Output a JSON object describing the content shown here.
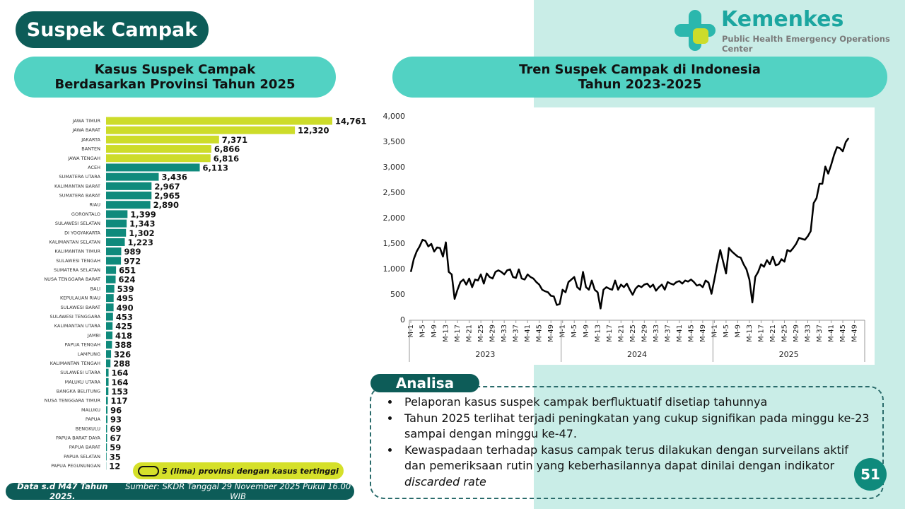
{
  "header": {
    "title": "Suspek Campak",
    "logo_name": "Kemenkes",
    "logo_subtitle": "Public Health Emergency Operations Center"
  },
  "chart_data": [
    {
      "type": "hbar",
      "title": [
        "Kasus Suspek Campak",
        "Berdasarkan Provinsi Tahun 2025"
      ],
      "categories": [
        "JAWA TIMUR",
        "JAWA BARAT",
        "JAKARTA",
        "BANTEN",
        "JAWA TENGAH",
        "ACEH",
        "SUMATERA UTARA",
        "KALIMANTAN BARAT",
        "SUMATERA BARAT",
        "RIAU",
        "GORONTALO",
        "SULAWESI SELATAN",
        "DI YOGYAKARTA",
        "KALIMANTAN SELATAN",
        "KALIMANTAN TIMUR",
        "SULAWESI TENGAH",
        "SUMATERA SELATAN",
        "NUSA TENGGARA BARAT",
        "BALI",
        "KEPULAUAN RIAU",
        "SULAWESI BARAT",
        "SULAWESI TENGGARA",
        "KALIMANTAN UTARA",
        "JAMBI",
        "PAPUA TENGAH",
        "LAMPUNG",
        "KALIMANTAN TENGAH",
        "SULAWESI UTARA",
        "MALUKU UTARA",
        "BANGKA BELITUNG",
        "NUSA TENGGARA TIMUR",
        "MALUKU",
        "PAPUA",
        "BENGKULU",
        "PAPUA BARAT DAYA",
        "PAPUA BARAT",
        "PAPUA SELATAN",
        "PAPUA PEGUNUNGAN"
      ],
      "values": [
        14761,
        12320,
        7371,
        6866,
        6816,
        6113,
        3436,
        2967,
        2965,
        2890,
        1399,
        1343,
        1302,
        1223,
        989,
        972,
        651,
        624,
        539,
        495,
        490,
        453,
        425,
        418,
        388,
        326,
        288,
        164,
        164,
        153,
        117,
        96,
        93,
        69,
        67,
        59,
        35,
        12
      ],
      "value_labels": [
        "14,761",
        "12,320",
        "7,371",
        "6,866",
        "6,816",
        "6,113",
        "3,436",
        "2,967",
        "2,965",
        "2,890",
        "1,399",
        "1,343",
        "1,302",
        "1,223",
        "989",
        "972",
        "651",
        "624",
        "539",
        "495",
        "490",
        "453",
        "425",
        "418",
        "388",
        "326",
        "288",
        "164",
        "164",
        "153",
        "117",
        "96",
        "93",
        "69",
        "67",
        "59",
        "35",
        "12"
      ],
      "colors": [
        "#cddc2a",
        "#cddc2a",
        "#cddc2a",
        "#cddc2a",
        "#cddc2a",
        "#0f8a7c",
        "#0f8a7c",
        "#0f8a7c",
        "#0f8a7c",
        "#0f8a7c",
        "#0f8a7c",
        "#0f8a7c",
        "#0f8a7c",
        "#0f8a7c",
        "#0f8a7c",
        "#0f8a7c",
        "#0f8a7c",
        "#0f8a7c",
        "#0f8a7c",
        "#0f8a7c",
        "#0f8a7c",
        "#0f8a7c",
        "#0f8a7c",
        "#0f8a7c",
        "#0f8a7c",
        "#0f8a7c",
        "#0f8a7c",
        "#0f8a7c",
        "#0f8a7c",
        "#0f8a7c",
        "#0f8a7c",
        "#0f8a7c",
        "#0f8a7c",
        "#0f8a7c",
        "#0f8a7c",
        "#0f8a7c",
        "#0f8a7c",
        "#0f8a7c"
      ],
      "legend": "5 (lima) provinsi dengan kasus tertinggi"
    },
    {
      "type": "line",
      "title": [
        "Tren Suspek Campak di Indonesia",
        "Tahun 2023-2025"
      ],
      "color": "#000000",
      "x_groups": [
        "2023",
        "2024",
        "2025"
      ],
      "categories": [
        "M-1",
        null,
        null,
        null,
        "M-5",
        null,
        null,
        null,
        "M-9",
        null,
        null,
        null,
        "M-13",
        null,
        null,
        null,
        "M-17",
        null,
        null,
        null,
        "M-21",
        null,
        null,
        null,
        "M-25",
        null,
        null,
        null,
        "M-29",
        null,
        null,
        null,
        "M-33",
        null,
        null,
        null,
        "M-37",
        null,
        null,
        null,
        "M-41",
        null,
        null,
        null,
        "M-45",
        null,
        null,
        null,
        "M-49",
        null,
        null,
        null,
        "M-1",
        null,
        null,
        null,
        "M-5",
        null,
        null,
        null,
        "M-9",
        null,
        null,
        null,
        "M-13",
        null,
        null,
        null,
        "M-17",
        null,
        null,
        null,
        "M-21",
        null,
        null,
        null,
        "M-25",
        null,
        null,
        null,
        "M-29",
        null,
        null,
        null,
        "M-33",
        null,
        null,
        null,
        "M-37",
        null,
        null,
        null,
        "M-41",
        null,
        null,
        null,
        "M-45",
        null,
        null,
        null,
        "M-49",
        null,
        null,
        null,
        "M-1",
        null,
        null,
        null,
        "M-5",
        null,
        null,
        null,
        "M-9",
        null,
        null,
        null,
        "M-13",
        null,
        null,
        null,
        "M-17",
        null,
        null,
        null,
        "M-21",
        null,
        null,
        null,
        "M-25",
        null,
        null,
        null,
        "M-29",
        null,
        null,
        null,
        "M-33",
        null,
        null,
        null,
        "M-37",
        null,
        null,
        null,
        "M-41",
        null,
        null,
        null,
        "M-45",
        null,
        null,
        null,
        "M-49",
        null,
        null,
        null
      ],
      "values": [
        950,
        1200,
        1350,
        1450,
        1580,
        1560,
        1450,
        1500,
        1350,
        1430,
        1420,
        1250,
        1530,
        950,
        900,
        420,
        600,
        750,
        800,
        700,
        820,
        650,
        800,
        780,
        900,
        720,
        920,
        850,
        820,
        950,
        980,
        950,
        900,
        980,
        1000,
        850,
        830,
        1000,
        820,
        800,
        900,
        850,
        820,
        750,
        700,
        600,
        570,
        550,
        480,
        470,
        300,
        320,
        600,
        550,
        750,
        800,
        850,
        650,
        600,
        950,
        650,
        600,
        780,
        600,
        550,
        230,
        600,
        650,
        620,
        600,
        780,
        600,
        700,
        650,
        720,
        600,
        500,
        620,
        680,
        650,
        700,
        720,
        650,
        700,
        580,
        650,
        700,
        600,
        750,
        720,
        700,
        750,
        770,
        720,
        780,
        760,
        800,
        750,
        680,
        700,
        650,
        780,
        740,
        520,
        800,
        1100,
        1380,
        1150,
        920,
        1420,
        1350,
        1300,
        1250,
        1230,
        1100,
        1000,
        800,
        350,
        850,
        950,
        1100,
        1050,
        1180,
        1100,
        1250,
        1080,
        1100,
        1200,
        1150,
        1380,
        1350,
        1420,
        1500,
        1620,
        1600,
        1580,
        1650,
        1750,
        2300,
        2400,
        2680,
        2680,
        3020,
        2880,
        3050,
        3250,
        3400,
        3380,
        3320,
        3500,
        3580,
        null,
        null,
        null,
        null,
        null
      ],
      "ylim": [
        0,
        4000
      ],
      "yticks": [
        0,
        500,
        {
          "value": 1000,
          "label": "1,000"
        },
        {
          "value": 1500,
          "label": "1,500"
        },
        {
          "value": 2000,
          "label": "2,000"
        },
        {
          "value": 2500,
          "label": "2,500"
        },
        {
          "value": 3000,
          "label": "3,000"
        },
        {
          "value": 3500,
          "label": "3,500"
        },
        {
          "value": 4000,
          "label": "4,000"
        }
      ]
    }
  ],
  "analysis": {
    "heading": "Analisa",
    "items": [
      {
        "text": "Pelaporan kasus suspek campak berfluktuatif disetiap tahunnya"
      },
      {
        "text": "Tahun 2025 terlihat terjadi peningkatan yang cukup signifikan pada minggu ke-23 sampai dengan minggu ke-47."
      },
      {
        "text": "Kewaspadaan terhadap kasus campak terus dilakukan dengan surveilans aktif dan pemeriksaan rutin yang keberhasilannya dapat dinilai dengan indikator ",
        "emphasis": "discarded rate"
      }
    ]
  },
  "footer": {
    "data_note": "Data s.d M47 Tahun 2025.",
    "source": "Sumber: SKDR Tanggal 29 November 2025 Pukul 16.00 WIB"
  },
  "page_number": "51"
}
